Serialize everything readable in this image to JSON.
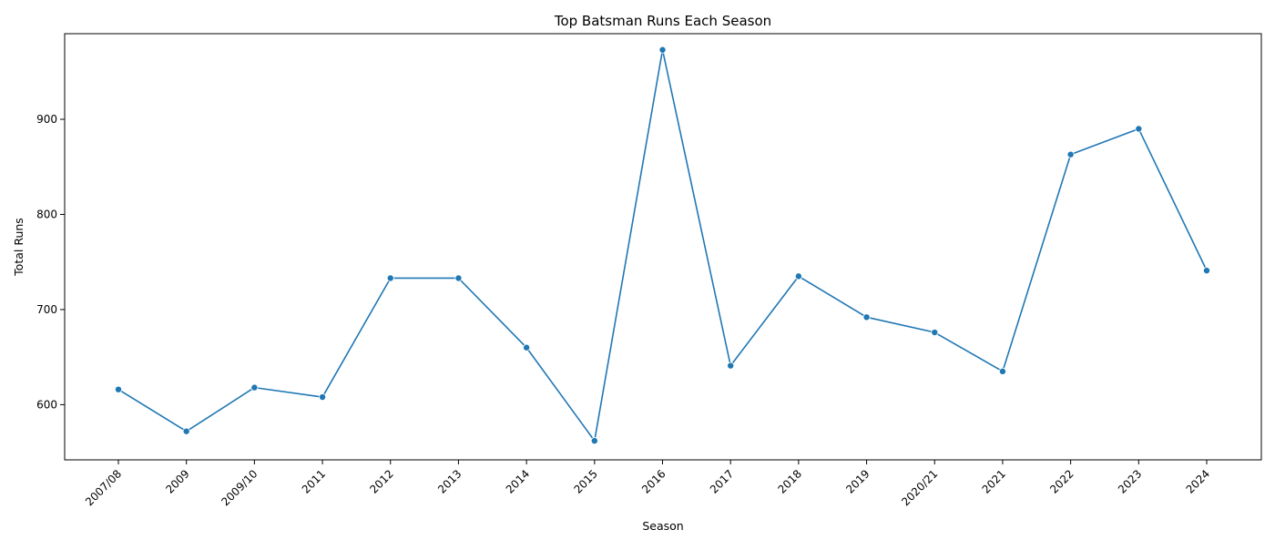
{
  "chart_data": {
    "type": "line",
    "title": "Top Batsman Runs Each Season",
    "xlabel": "Season",
    "ylabel": "Total Runs",
    "categories": [
      "2007/08",
      "2009",
      "2009/10",
      "2011",
      "2012",
      "2013",
      "2014",
      "2015",
      "2016",
      "2017",
      "2018",
      "2019",
      "2020/21",
      "2021",
      "2022",
      "2023",
      "2024"
    ],
    "series": [
      {
        "color": "#1f77b4",
        "values": [
          616,
          572,
          618,
          608,
          733,
          733,
          660,
          562,
          973,
          641,
          735,
          692,
          676,
          635,
          863,
          890,
          741
        ]
      }
    ],
    "ylim": [
      542,
      990
    ],
    "yticks": [
      600,
      700,
      800,
      900
    ],
    "grid": false,
    "markers": true
  }
}
